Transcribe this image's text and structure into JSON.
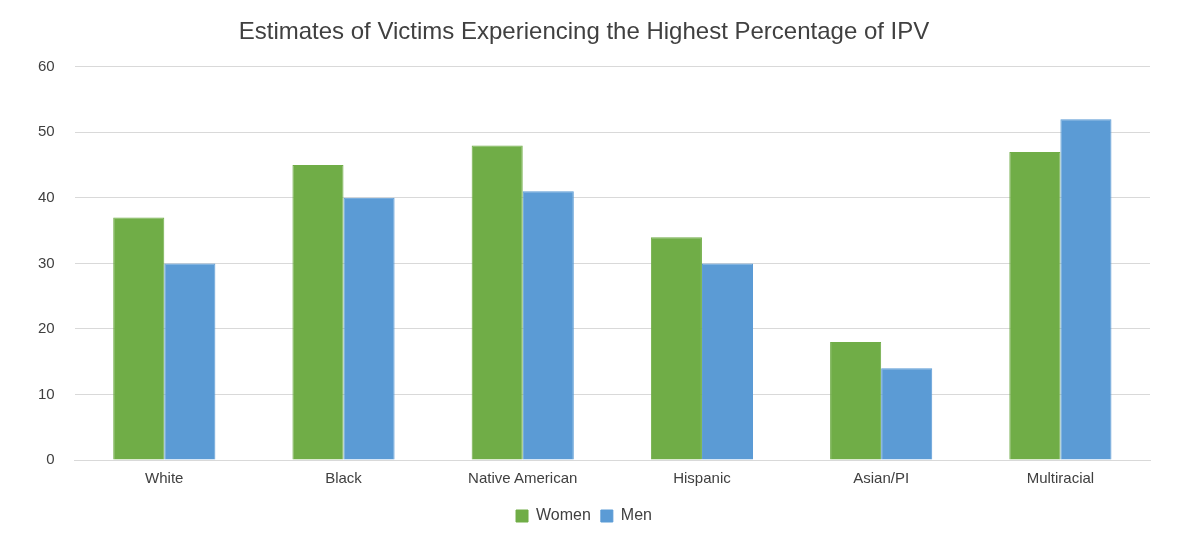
{
  "chart_data": {
    "type": "bar",
    "title": "Estimates of Victims Experiencing the Highest Percentage of IPV",
    "categories": [
      "White",
      "Black",
      "Native American",
      "Hispanic",
      "Asian/PI",
      "Multiracial"
    ],
    "series": [
      {
        "name": "Women",
        "color": "#70ad47",
        "values": [
          37,
          45,
          48,
          34,
          18,
          47
        ]
      },
      {
        "name": "Men",
        "color": "#5b9bd5",
        "values": [
          30,
          40,
          41,
          30,
          14,
          52
        ]
      }
    ],
    "ylim": [
      0,
      60
    ],
    "yticks": [
      0,
      10,
      20,
      30,
      40,
      50,
      60
    ],
    "grid": "y",
    "legend": "bottom"
  }
}
